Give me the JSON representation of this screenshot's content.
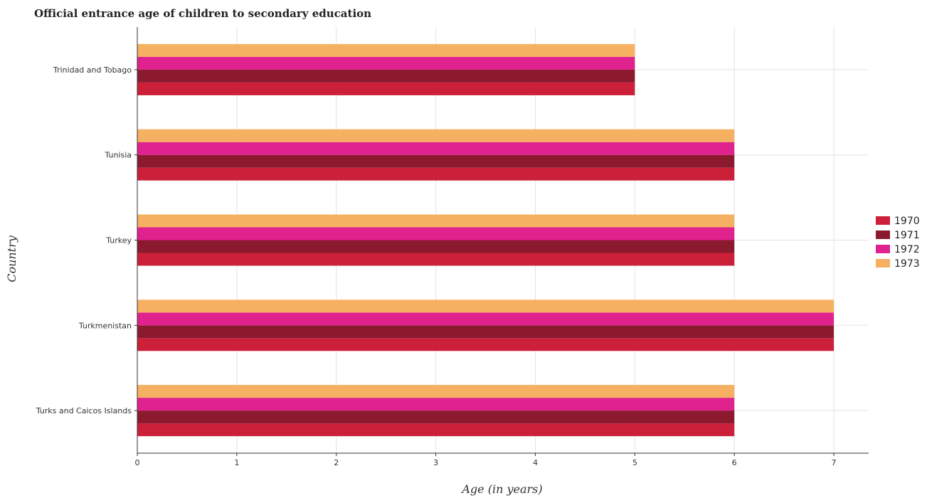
{
  "chart_data": {
    "type": "bar",
    "orientation": "horizontal",
    "title": "Official entrance age of children to secondary education",
    "xlabel": "Age (in years)",
    "ylabel": "Country",
    "categories": [
      "Trinidad and Tobago",
      "Tunisia",
      "Turkey",
      "Turkmenistan",
      "Turks and Caicos Islands"
    ],
    "series": [
      {
        "name": "1970",
        "color": "#cc1f3a",
        "values": [
          5,
          6,
          6,
          7,
          6
        ]
      },
      {
        "name": "1971",
        "color": "#8b1a2e",
        "values": [
          5,
          6,
          6,
          7,
          6
        ]
      },
      {
        "name": "1972",
        "color": "#e0228f",
        "values": [
          5,
          6,
          6,
          7,
          6
        ]
      },
      {
        "name": "1973",
        "color": "#f5b062",
        "values": [
          5,
          6,
          6,
          7,
          6
        ]
      }
    ],
    "xlim": [
      0,
      7.35
    ],
    "xticks": [
      "0",
      "1",
      "2",
      "3",
      "4",
      "5",
      "6",
      "7"
    ],
    "grid": true,
    "legend_position": "right"
  }
}
